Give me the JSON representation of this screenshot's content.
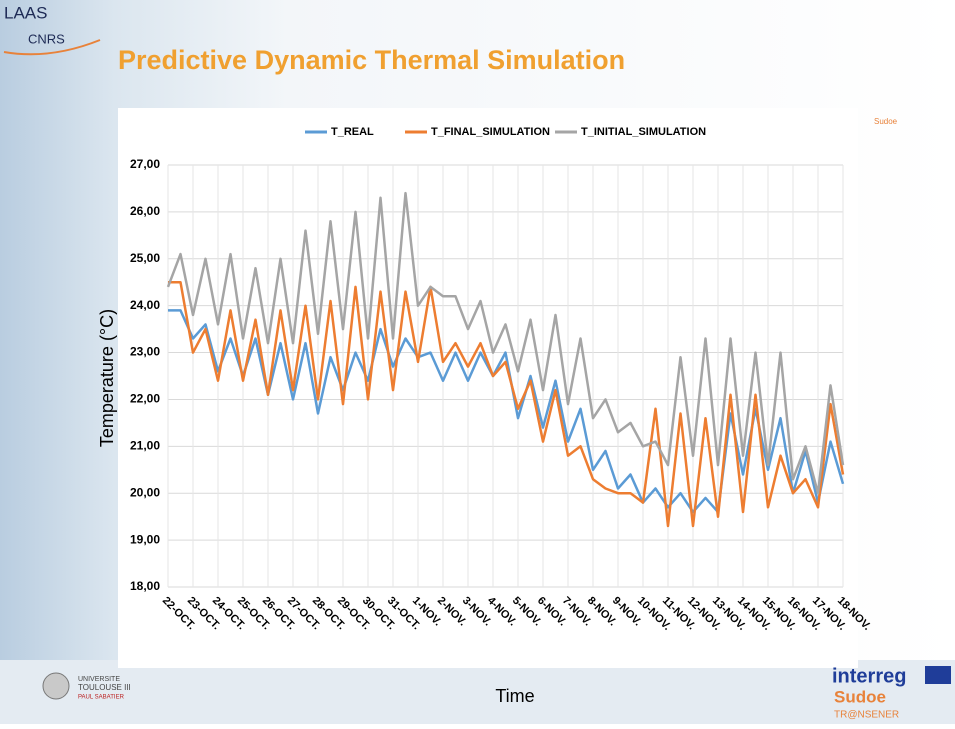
{
  "slide": {
    "title": "Predictive Dynamic Thermal Simulation",
    "logo_top": [
      "LAAS",
      "CNRS"
    ],
    "logo_sudoe_small": "Sudoe",
    "logo_university": [
      "UNIVERSITE",
      "TOULOUSE III",
      "PAUL SABATIER"
    ],
    "logo_bottom": [
      "interreg",
      "Sudoe",
      "TR@NSENER"
    ]
  },
  "chart_data": {
    "type": "line",
    "xlabel": "Time",
    "ylabel": "Temperature (°C)",
    "categories": [
      "22-OCT.",
      null,
      "23-OCT.",
      null,
      "24-OCT.",
      null,
      "25-OCT.",
      null,
      "26-OCT.",
      null,
      "27-OCT.",
      null,
      "28-OCT.",
      null,
      "29-OCT.",
      null,
      "30-OCT.",
      null,
      "31-OCT.",
      null,
      "1-NOV.",
      null,
      "2-NOV.",
      null,
      "3-NOV.",
      null,
      "4-NOV.",
      null,
      "5-NOV.",
      null,
      "6-NOV.",
      null,
      "7-NOV.",
      null,
      "8-NOV.",
      null,
      "9-NOV.",
      null,
      "10-NOV.",
      null,
      "11-NOV.",
      null,
      "12-NOV.",
      null,
      "13-NOV.",
      null,
      "14-NOV.",
      null,
      "15-NOV.",
      null,
      "16-NOV.",
      null,
      "17-NOV.",
      null,
      "18-NOV."
    ],
    "series": [
      {
        "name": "T_REAL",
        "color": "#5b9bd5",
        "values": [
          23.9,
          23.9,
          23.3,
          23.6,
          22.6,
          23.3,
          22.5,
          23.3,
          22.1,
          23.2,
          22.0,
          23.2,
          21.7,
          22.9,
          22.2,
          23.0,
          22.4,
          23.5,
          22.7,
          23.3,
          22.9,
          23.0,
          22.4,
          23.0,
          22.4,
          23.0,
          22.5,
          23.0,
          21.6,
          22.5,
          21.4,
          22.4,
          21.1,
          21.8,
          20.5,
          20.9,
          20.1,
          20.4,
          19.8,
          20.1,
          19.7,
          20.0,
          19.6,
          19.9,
          19.6,
          21.7,
          20.4,
          21.8,
          20.5,
          21.6,
          20.0,
          20.9,
          19.8,
          21.1,
          20.2
        ]
      },
      {
        "name": "T_FINAL_SIMULATION",
        "color": "#ed7d31",
        "values": [
          24.5,
          24.5,
          23.0,
          23.5,
          22.4,
          23.9,
          22.4,
          23.7,
          22.1,
          23.9,
          22.2,
          24.0,
          22.0,
          24.1,
          21.9,
          24.4,
          22.0,
          24.3,
          22.2,
          24.3,
          22.8,
          24.4,
          22.8,
          23.2,
          22.7,
          23.2,
          22.5,
          22.8,
          21.8,
          22.4,
          21.1,
          22.2,
          20.8,
          21.0,
          20.3,
          20.1,
          20.0,
          20.0,
          19.8,
          21.8,
          19.3,
          21.7,
          19.3,
          21.6,
          19.5,
          22.1,
          19.6,
          22.1,
          19.7,
          20.8,
          20.0,
          20.3,
          19.7,
          21.9,
          20.4
        ]
      },
      {
        "name": "T_INITIAL_SIMULATION",
        "color": "#a5a5a5",
        "values": [
          24.4,
          25.1,
          23.8,
          25.0,
          23.6,
          25.1,
          23.3,
          24.8,
          23.2,
          25.0,
          23.2,
          25.6,
          23.4,
          25.8,
          23.5,
          26.0,
          23.3,
          26.3,
          23.3,
          26.4,
          24.0,
          24.4,
          24.2,
          24.2,
          23.5,
          24.1,
          23.0,
          23.6,
          22.6,
          23.7,
          22.2,
          23.8,
          21.9,
          23.3,
          21.6,
          22.0,
          21.3,
          21.5,
          21.0,
          21.1,
          20.6,
          22.9,
          20.8,
          23.3,
          20.6,
          23.3,
          20.8,
          23.0,
          20.6,
          23.0,
          20.3,
          21.0,
          20.0,
          22.3,
          20.6
        ]
      }
    ],
    "ylim": [
      18,
      27
    ],
    "yticks": [
      {
        "value": 18,
        "label": "18,00"
      },
      {
        "value": 19,
        "label": "19,00"
      },
      {
        "value": 20,
        "label": "20,00"
      },
      {
        "value": 21,
        "label": "21,00"
      },
      {
        "value": 22,
        "label": "22,00"
      },
      {
        "value": 23,
        "label": "23,00"
      },
      {
        "value": 24,
        "label": "24,00"
      },
      {
        "value": 25,
        "label": "25,00"
      },
      {
        "value": 26,
        "label": "26,00"
      },
      {
        "value": 27,
        "label": "27,00"
      }
    ],
    "grid": true,
    "legend": "top"
  }
}
